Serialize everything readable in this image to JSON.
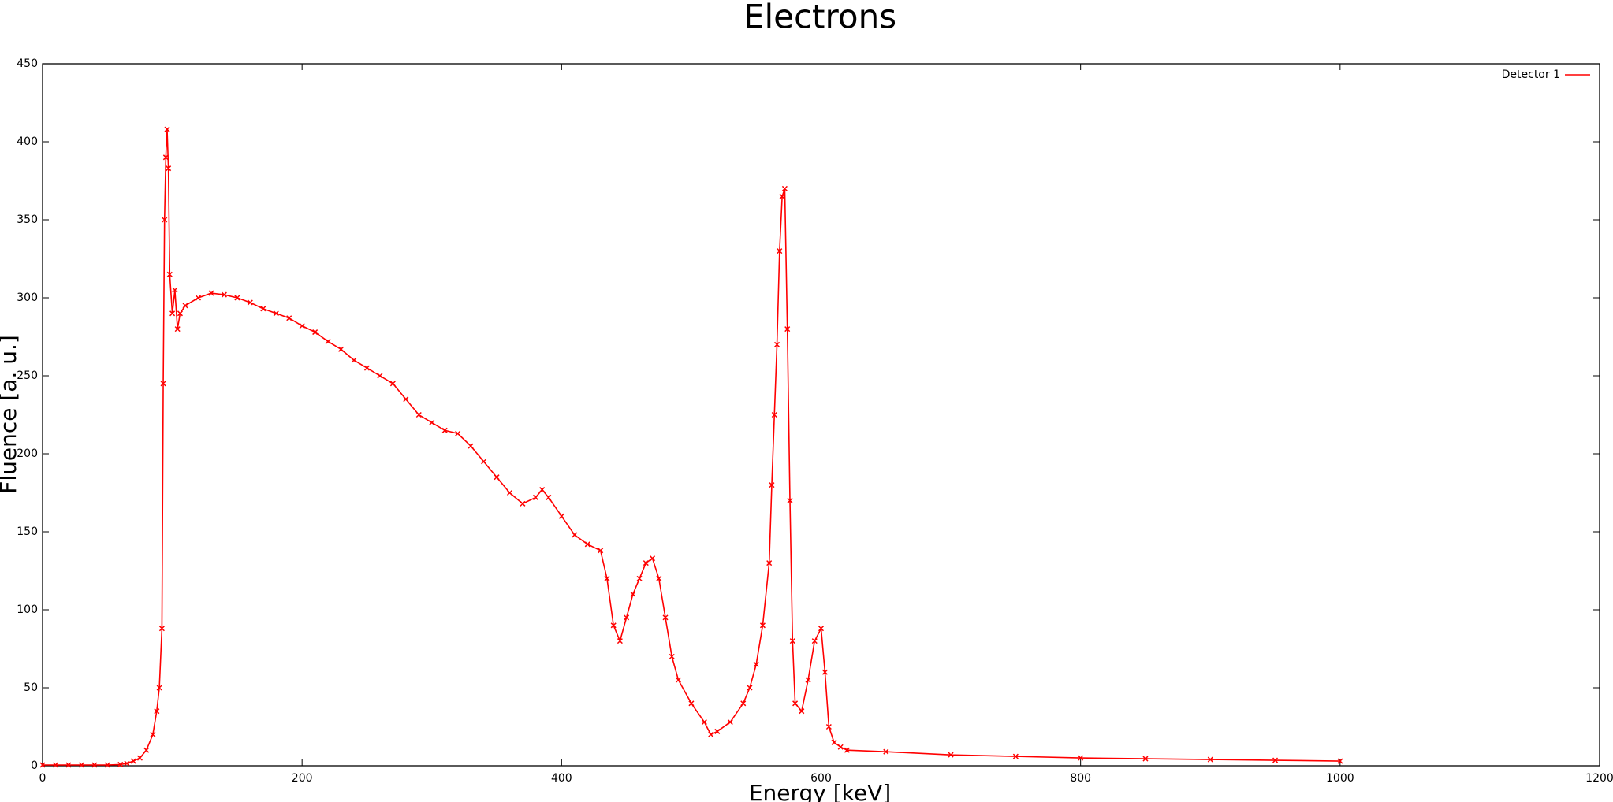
{
  "chart_data": {
    "type": "line",
    "title": "Electrons",
    "x_label": "Energy [keV]",
    "y_label": "Fluence [a. u.]",
    "x": [
      0,
      10,
      20,
      30,
      40,
      50,
      60,
      65,
      70,
      75,
      80,
      85,
      88,
      90,
      92,
      93,
      94,
      95,
      96,
      97,
      98,
      100,
      102,
      104,
      106,
      110,
      120,
      130,
      140,
      150,
      160,
      170,
      180,
      190,
      200,
      210,
      220,
      230,
      240,
      250,
      260,
      270,
      280,
      290,
      300,
      310,
      320,
      330,
      340,
      350,
      360,
      370,
      380,
      385,
      390,
      400,
      410,
      420,
      430,
      435,
      440,
      445,
      450,
      455,
      460,
      465,
      470,
      475,
      480,
      485,
      490,
      500,
      510,
      515,
      520,
      530,
      540,
      545,
      550,
      555,
      560,
      562,
      564,
      566,
      568,
      570,
      572,
      574,
      576,
      578,
      580,
      585,
      590,
      595,
      600,
      603,
      606,
      610,
      615,
      620,
      650,
      700,
      750,
      800,
      850,
      900,
      950,
      1000
    ],
    "series": [
      {
        "name": "Detector 1",
        "color": "#ff0000",
        "values": [
          0.5,
          0.5,
          0.5,
          0.5,
          0.5,
          0.5,
          0.8,
          1.5,
          3,
          5,
          10,
          20,
          35,
          50,
          88,
          245,
          350,
          390,
          408,
          383,
          315,
          290,
          305,
          280,
          290,
          295,
          300,
          303,
          302,
          300,
          297,
          293,
          290,
          287,
          282,
          278,
          272,
          267,
          260,
          255,
          250,
          245,
          235,
          225,
          220,
          215,
          213,
          205,
          195,
          185,
          175,
          168,
          172,
          177,
          172,
          160,
          148,
          142,
          138,
          120,
          90,
          80,
          95,
          110,
          120,
          130,
          133,
          120,
          95,
          70,
          55,
          40,
          28,
          20,
          22,
          28,
          40,
          50,
          65,
          90,
          130,
          180,
          225,
          270,
          330,
          365,
          370,
          280,
          170,
          80,
          40,
          35,
          55,
          80,
          88,
          60,
          25,
          15,
          12,
          10,
          9,
          7,
          6,
          5,
          4.5,
          4,
          3.5,
          3
        ]
      }
    ],
    "xlim": [
      0,
      1200
    ],
    "ylim": [
      0,
      450
    ],
    "xticks": [
      0,
      200,
      400,
      600,
      800,
      1000,
      1200
    ],
    "yticks": [
      0,
      50,
      100,
      150,
      200,
      250,
      300,
      350,
      400,
      450
    ],
    "legend": "upper right"
  }
}
